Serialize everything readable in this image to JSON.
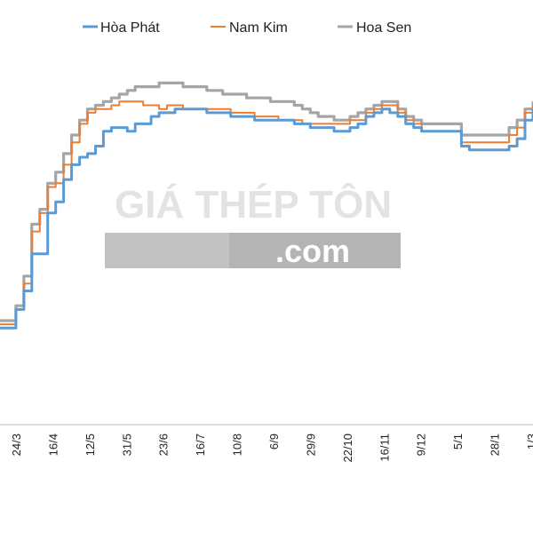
{
  "watermark": {
    "line1": "GIÁ THÉP TÔN",
    "line2": ".com"
  },
  "chart_data": {
    "type": "line",
    "title": "",
    "xlabel": "",
    "ylabel": "",
    "grid": false,
    "legend": "top",
    "x_tick_labels": [
      "24/3",
      "16/4",
      "12/5",
      "31/5",
      "23/6",
      "16/7",
      "10/8",
      "6/9",
      "29/9",
      "22/10",
      "16/11",
      "9/12",
      "5/1",
      "28/1",
      "1/3"
    ],
    "ylim": [
      0,
      100
    ],
    "series": [
      {
        "name": "Hòa Phát",
        "color": "#5b9bd5",
        "values": [
          26,
          26,
          31,
          36,
          46,
          46,
          57,
          60,
          66,
          70,
          72,
          73,
          75,
          79,
          80,
          80,
          79,
          81,
          81,
          83,
          84,
          84,
          85,
          85,
          85,
          85,
          84,
          84,
          84,
          83,
          83,
          83,
          82,
          82,
          82,
          82,
          82,
          81,
          81,
          80,
          80,
          80,
          79,
          79,
          80,
          81,
          83,
          84,
          85,
          84,
          83,
          81,
          80,
          79,
          79,
          79,
          79,
          79,
          75,
          74,
          74,
          74,
          74,
          74,
          75,
          77,
          82,
          85
        ]
      },
      {
        "name": "Nam Kim",
        "color": "#ed7d31",
        "values": [
          27,
          27,
          31,
          38,
          52,
          57,
          64,
          65,
          70,
          76,
          81,
          84,
          85,
          85,
          86,
          87,
          87,
          87,
          86,
          86,
          85,
          86,
          86,
          85,
          85,
          85,
          85,
          85,
          85,
          84,
          84,
          84,
          83,
          83,
          83,
          82,
          82,
          82,
          81,
          81,
          81,
          81,
          81,
          81,
          82,
          82,
          84,
          85,
          86,
          86,
          84,
          82,
          81,
          79,
          79,
          79,
          79,
          79,
          76,
          76,
          76,
          76,
          76,
          76,
          78,
          80,
          84,
          86
        ]
      },
      {
        "name": "Hoa Sen",
        "color": "#a5a5a5",
        "values": [
          28,
          28,
          32,
          40,
          54,
          58,
          65,
          68,
          73,
          78,
          82,
          85,
          86,
          87,
          88,
          89,
          90,
          91,
          91,
          91,
          92,
          92,
          92,
          91,
          91,
          91,
          90,
          90,
          89,
          89,
          89,
          88,
          88,
          88,
          87,
          87,
          87,
          86,
          85,
          84,
          83,
          83,
          82,
          82,
          83,
          84,
          85,
          86,
          87,
          87,
          85,
          83,
          82,
          81,
          81,
          81,
          81,
          81,
          78,
          78,
          78,
          78,
          78,
          78,
          80,
          82,
          85,
          87
        ]
      }
    ]
  }
}
